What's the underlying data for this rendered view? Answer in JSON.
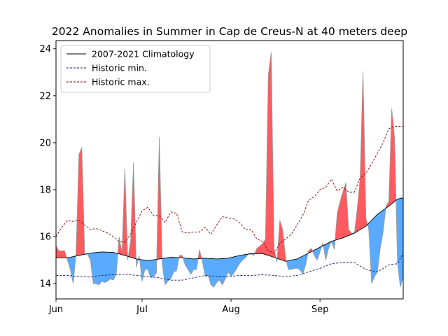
{
  "chart_data": {
    "type": "area",
    "title": "2022 Anomalies in Summer in Cap de Creus-N at 40 meters deep",
    "xlabel": "",
    "ylabel": "",
    "x_range_days": [
      0,
      121
    ],
    "ylim": [
      13.35,
      24.35
    ],
    "y_ticks": [
      14,
      16,
      18,
      20,
      22,
      24
    ],
    "x_ticks": [
      {
        "day": 0,
        "label": "Jun"
      },
      {
        "day": 30,
        "label": "Jul"
      },
      {
        "day": 61,
        "label": "Aug"
      },
      {
        "day": 92,
        "label": "Sep"
      }
    ],
    "grid": false,
    "legend_position": "top-left",
    "colors": {
      "climatology": "#000000",
      "historic_min": "#1a1a80",
      "historic_max": "#8b0000",
      "above_fill": "#ff5a5f",
      "below_fill": "#5aabff",
      "observed_line": "#999999"
    },
    "series": [
      {
        "name": "2007-2021 Climatology",
        "style": "solid",
        "x": [
          0,
          4,
          8,
          12,
          16,
          20,
          24,
          28,
          32,
          36,
          40,
          44,
          48,
          52,
          56,
          60,
          64,
          68,
          72,
          76,
          80,
          84,
          88,
          92,
          96,
          100,
          104,
          108,
          112,
          116,
          119,
          121
        ],
        "y": [
          15.1,
          15.1,
          15.2,
          15.3,
          15.35,
          15.33,
          15.2,
          15.05,
          14.98,
          15.05,
          15.12,
          15.1,
          15.05,
          15.08,
          15.05,
          15.08,
          15.2,
          15.28,
          15.28,
          15.12,
          14.95,
          15.05,
          15.3,
          15.55,
          15.8,
          15.95,
          16.15,
          16.45,
          16.95,
          17.3,
          17.6,
          17.65
        ]
      },
      {
        "name": "Historic min.",
        "style": "dashed",
        "x": [
          0,
          4,
          8,
          12,
          16,
          20,
          24,
          28,
          32,
          36,
          40,
          44,
          48,
          52,
          56,
          60,
          64,
          68,
          72,
          76,
          80,
          84,
          88,
          92,
          96,
          100,
          104,
          108,
          112,
          116,
          119,
          121
        ],
        "y": [
          14.35,
          14.35,
          14.3,
          14.28,
          14.35,
          14.38,
          14.4,
          14.35,
          14.3,
          14.25,
          14.15,
          14.15,
          14.25,
          14.35,
          14.3,
          14.3,
          14.35,
          14.35,
          14.38,
          14.35,
          14.3,
          14.35,
          14.5,
          14.65,
          14.85,
          14.9,
          14.9,
          14.6,
          14.5,
          14.8,
          14.85,
          15.3
        ]
      },
      {
        "name": "Historic max.",
        "style": "dashed",
        "x": [
          0,
          2,
          4,
          6,
          8,
          10,
          12,
          14,
          16,
          18,
          20,
          22,
          24,
          26,
          28,
          30,
          32,
          34,
          36,
          38,
          40,
          42,
          44,
          46,
          48,
          50,
          52,
          54,
          56,
          58,
          60,
          62,
          64,
          66,
          68,
          70,
          72,
          74,
          76,
          78,
          80,
          82,
          84,
          86,
          88,
          90,
          92,
          94,
          96,
          98,
          100,
          102,
          104,
          106,
          108,
          110,
          112,
          114,
          116,
          118,
          121
        ],
        "y": [
          16.0,
          16.4,
          16.7,
          16.65,
          16.7,
          16.5,
          16.3,
          16.35,
          16.25,
          16.15,
          16.0,
          15.8,
          15.75,
          16.1,
          16.6,
          17.1,
          17.25,
          16.9,
          16.9,
          16.6,
          17.05,
          17.0,
          16.2,
          16.15,
          16.2,
          16.2,
          16.4,
          16.1,
          16.5,
          16.85,
          16.8,
          16.75,
          16.6,
          16.3,
          16.3,
          15.9,
          15.8,
          15.4,
          15.3,
          15.7,
          15.9,
          16.1,
          16.5,
          16.9,
          17.55,
          17.7,
          18.0,
          18.1,
          18.45,
          17.95,
          18.1,
          17.9,
          17.9,
          18.5,
          18.7,
          19.1,
          19.55,
          20.0,
          20.6,
          20.7,
          20.7
        ]
      },
      {
        "name": "",
        "style": "observed",
        "x": [
          0,
          1,
          2,
          3,
          4,
          5,
          6,
          7,
          8,
          9,
          10,
          11,
          12,
          13,
          14,
          15,
          16,
          17,
          18,
          19,
          20,
          21,
          22,
          23,
          24,
          25,
          26,
          27,
          28,
          29,
          30,
          31,
          32,
          33,
          34,
          35,
          36,
          37,
          38,
          39,
          40,
          41,
          42,
          43,
          44,
          45,
          46,
          47,
          48,
          49,
          50,
          51,
          52,
          53,
          54,
          55,
          56,
          57,
          58,
          59,
          60,
          61,
          62,
          63,
          64,
          65,
          66,
          67,
          68,
          69,
          70,
          71,
          72,
          73,
          74,
          75,
          76,
          77,
          78,
          79,
          80,
          81,
          82,
          83,
          84,
          85,
          86,
          87,
          88,
          89,
          90,
          91,
          92,
          93,
          94,
          95,
          96,
          97,
          98,
          99,
          100,
          101,
          102,
          103,
          104,
          105,
          106,
          107,
          108,
          109,
          110,
          111,
          112,
          113,
          114,
          115,
          116,
          117,
          118,
          119,
          120,
          121
        ],
        "y": [
          15.6,
          15.4,
          15.4,
          15.4,
          15.0,
          14.6,
          14.0,
          15.3,
          19.5,
          19.8,
          15.25,
          15.25,
          15.0,
          14.0,
          14.0,
          13.95,
          14.1,
          14.05,
          14.1,
          14.2,
          14.15,
          14.4,
          16.0,
          15.3,
          18.9,
          15.0,
          15.8,
          19.15,
          14.7,
          15.2,
          14.1,
          14.6,
          14.6,
          14.25,
          14.3,
          14.45,
          20.25,
          14.85,
          13.95,
          14.1,
          14.2,
          14.5,
          14.55,
          15.2,
          15.2,
          14.8,
          14.6,
          14.4,
          14.6,
          14.6,
          15.45,
          14.95,
          14.3,
          14.35,
          13.95,
          13.85,
          14.05,
          14.15,
          13.95,
          14.2,
          14.5,
          14.3,
          14.45,
          14.65,
          14.85,
          15.0,
          15.1,
          15.25,
          15.25,
          15.2,
          15.5,
          15.6,
          15.7,
          15.9,
          22.9,
          23.85,
          15.5,
          14.9,
          16.7,
          16.3,
          15.1,
          14.6,
          14.6,
          14.65,
          14.65,
          14.6,
          14.4,
          14.8,
          15.4,
          15.5,
          15.2,
          15.0,
          15.35,
          15.75,
          15.0,
          15.5,
          15.8,
          15.45,
          17.0,
          17.5,
          17.9,
          18.3,
          16.3,
          16.15,
          16.15,
          17.2,
          18.5,
          23.05,
          16.8,
          16.3,
          14.0,
          14.3,
          14.5,
          15.5,
          16.2,
          17.3,
          17.5,
          21.45,
          20.2,
          14.9,
          13.85,
          14.3
        ]
      }
    ]
  }
}
